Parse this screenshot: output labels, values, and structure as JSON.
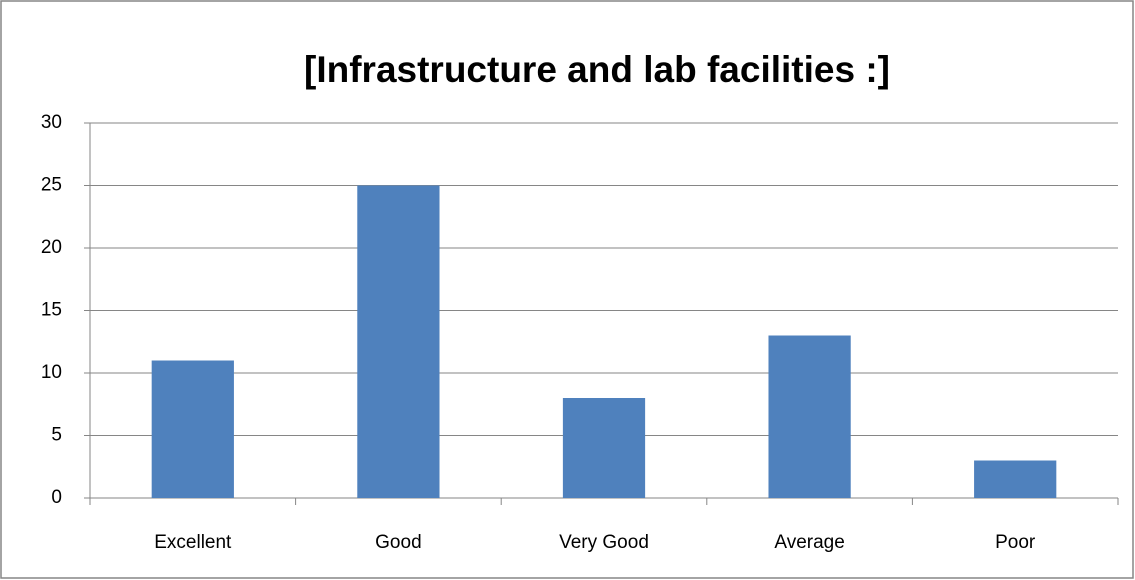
{
  "chart_data": {
    "type": "bar",
    "title": "[Infrastructure and lab facilities :]",
    "categories": [
      "Excellent",
      "Good",
      "Very Good",
      "Average",
      "Poor"
    ],
    "values": [
      11,
      25,
      8,
      13,
      3
    ],
    "color": "#4f81bd",
    "ylim": [
      0,
      30
    ],
    "yticks": [
      0,
      5,
      10,
      15,
      20,
      25,
      30
    ],
    "grid": true
  }
}
